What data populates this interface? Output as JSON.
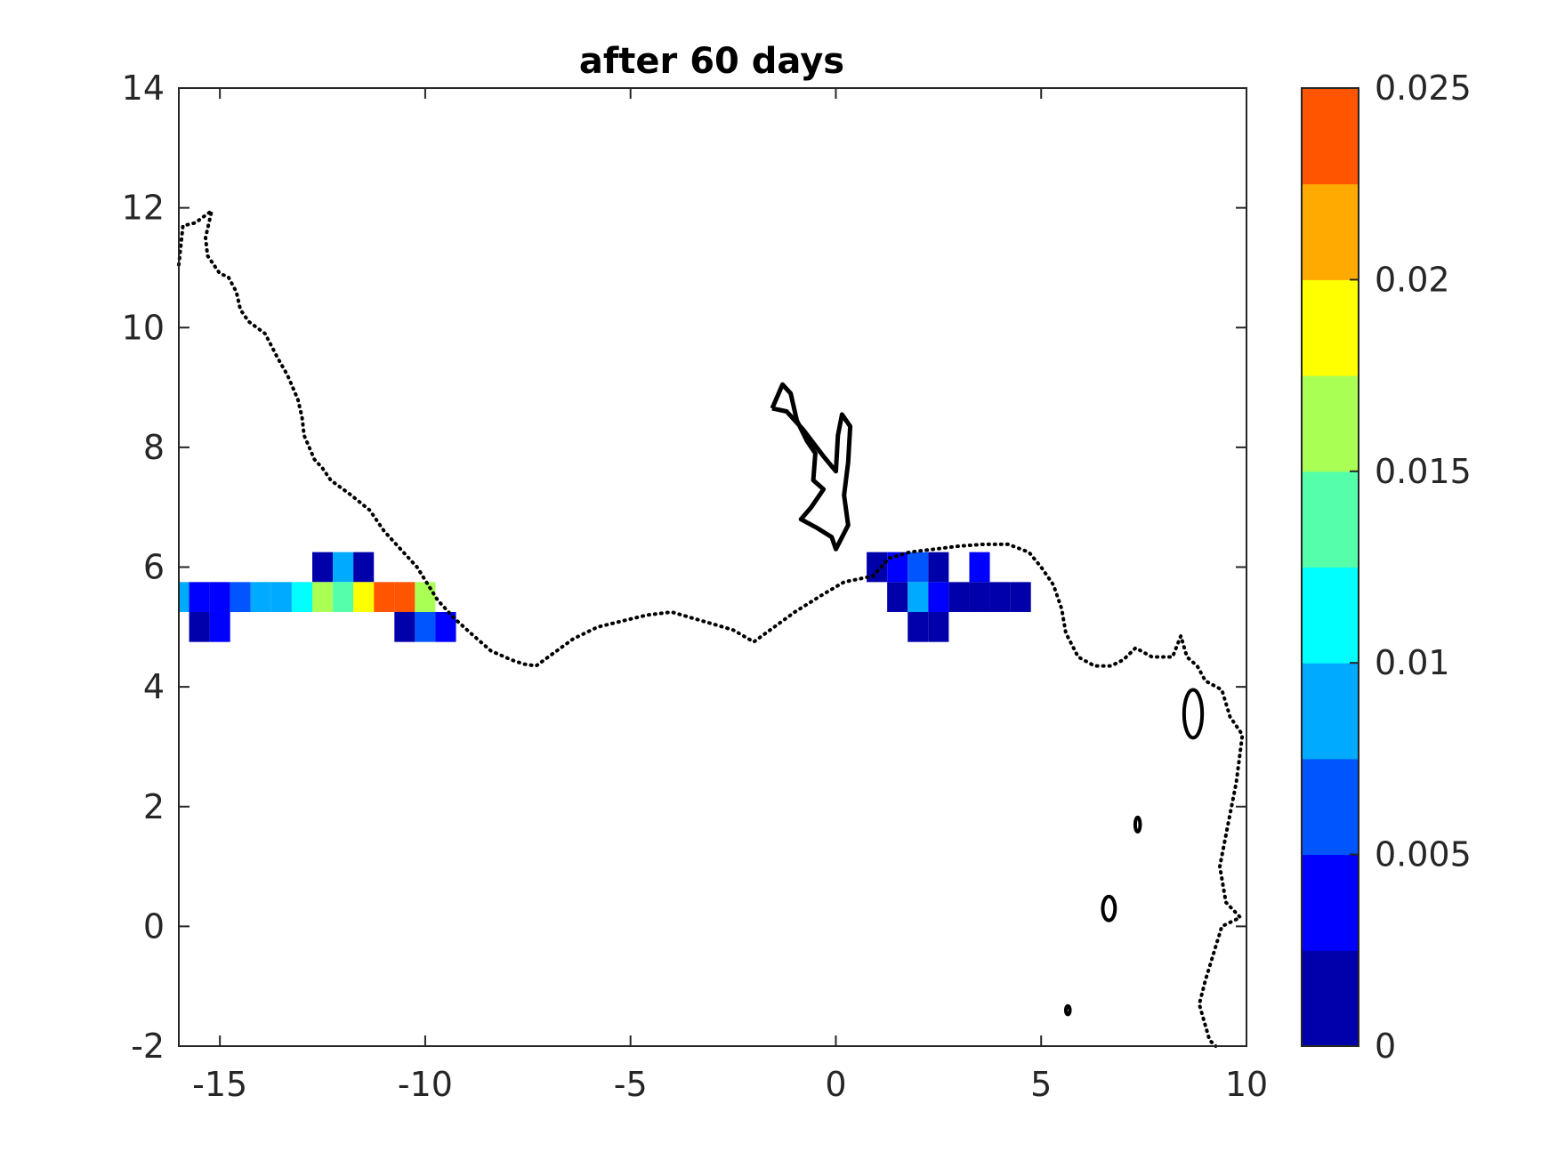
{
  "chart_data": {
    "type": "heatmap",
    "title": "after 60 days",
    "xlabel": "",
    "ylabel": "",
    "xlim": [
      -16,
      10
    ],
    "ylim": [
      -2,
      14
    ],
    "x_ticks": [
      -15,
      -10,
      -5,
      0,
      5,
      10
    ],
    "y_ticks": [
      -2,
      0,
      2,
      4,
      6,
      8,
      10,
      12,
      14
    ],
    "grid": false,
    "colorbar": {
      "clim": [
        0,
        0.025
      ],
      "ticks": [
        0,
        0.005,
        0.01,
        0.015,
        0.02,
        0.025
      ],
      "tick_labels": [
        "0",
        "0.005",
        "0.01",
        "0.015",
        "0.02",
        "0.025"
      ],
      "colors": [
        "#0000AA",
        "#0000FF",
        "#0055FF",
        "#00AAFF",
        "#00FFFF",
        "#55FFAA",
        "#AAFF55",
        "#FFFF00",
        "#FFAA00",
        "#FF5500"
      ]
    },
    "cells": [
      {
        "x": -12.5,
        "y": 6.0,
        "v": 0.0015
      },
      {
        "x": -12.0,
        "y": 6.0,
        "v": 0.0085
      },
      {
        "x": -11.5,
        "y": 6.0,
        "v": 0.0015
      },
      {
        "x": -16.0,
        "y": 5.5,
        "v": 0.0085
      },
      {
        "x": -15.5,
        "y": 5.5,
        "v": 0.0035
      },
      {
        "x": -15.0,
        "y": 5.5,
        "v": 0.0035
      },
      {
        "x": -14.5,
        "y": 5.5,
        "v": 0.006
      },
      {
        "x": -14.0,
        "y": 5.5,
        "v": 0.0085
      },
      {
        "x": -13.5,
        "y": 5.5,
        "v": 0.0085
      },
      {
        "x": -13.0,
        "y": 5.5,
        "v": 0.011
      },
      {
        "x": -12.5,
        "y": 5.5,
        "v": 0.016
      },
      {
        "x": -12.0,
        "y": 5.5,
        "v": 0.0135
      },
      {
        "x": -11.5,
        "y": 5.5,
        "v": 0.0185
      },
      {
        "x": -11.0,
        "y": 5.5,
        "v": 0.0235
      },
      {
        "x": -10.5,
        "y": 5.5,
        "v": 0.0235
      },
      {
        "x": -10.0,
        "y": 5.5,
        "v": 0.016
      },
      {
        "x": -15.5,
        "y": 5.0,
        "v": 0.0015
      },
      {
        "x": -15.0,
        "y": 5.0,
        "v": 0.0035
      },
      {
        "x": -10.5,
        "y": 5.0,
        "v": 0.0015
      },
      {
        "x": -10.0,
        "y": 5.0,
        "v": 0.006
      },
      {
        "x": -9.5,
        "y": 5.0,
        "v": 0.0035
      },
      {
        "x": 1.0,
        "y": 6.0,
        "v": 0.0015
      },
      {
        "x": 1.5,
        "y": 6.0,
        "v": 0.0035
      },
      {
        "x": 2.0,
        "y": 6.0,
        "v": 0.006
      },
      {
        "x": 2.5,
        "y": 6.0,
        "v": 0.0015
      },
      {
        "x": 3.5,
        "y": 6.0,
        "v": 0.0035
      },
      {
        "x": 1.5,
        "y": 5.5,
        "v": 0.0015
      },
      {
        "x": 2.0,
        "y": 5.5,
        "v": 0.0085
      },
      {
        "x": 2.5,
        "y": 5.5,
        "v": 0.0035
      },
      {
        "x": 3.0,
        "y": 5.5,
        "v": 0.0015
      },
      {
        "x": 3.5,
        "y": 5.5,
        "v": 0.0015
      },
      {
        "x": 4.0,
        "y": 5.5,
        "v": 0.0015
      },
      {
        "x": 4.5,
        "y": 5.5,
        "v": 0.0015
      },
      {
        "x": 2.0,
        "y": 5.0,
        "v": 0.0015
      },
      {
        "x": 2.5,
        "y": 5.0,
        "v": 0.0015
      }
    ],
    "cell_size": 0.5,
    "coastline": [
      [
        -16.0,
        11.05
      ],
      [
        -15.9,
        11.7
      ],
      [
        -15.6,
        11.75
      ],
      [
        -15.4,
        11.85
      ],
      [
        -15.2,
        11.95
      ],
      [
        -15.35,
        11.5
      ],
      [
        -15.3,
        11.2
      ],
      [
        -15.0,
        10.9
      ],
      [
        -14.8,
        10.85
      ],
      [
        -14.6,
        10.6
      ],
      [
        -14.5,
        10.3
      ],
      [
        -14.3,
        10.1
      ],
      [
        -13.9,
        9.9
      ],
      [
        -13.6,
        9.5
      ],
      [
        -13.35,
        9.2
      ],
      [
        -13.1,
        8.8
      ],
      [
        -13.0,
        8.5
      ],
      [
        -12.95,
        8.2
      ],
      [
        -12.7,
        7.8
      ],
      [
        -12.5,
        7.65
      ],
      [
        -12.3,
        7.45
      ],
      [
        -11.8,
        7.2
      ],
      [
        -11.35,
        6.95
      ],
      [
        -11.0,
        6.6
      ],
      [
        -10.6,
        6.3
      ],
      [
        -10.2,
        6.0
      ],
      [
        -9.7,
        5.45
      ],
      [
        -9.3,
        5.15
      ],
      [
        -8.9,
        4.9
      ],
      [
        -8.4,
        4.6
      ],
      [
        -7.9,
        4.45
      ],
      [
        -7.6,
        4.38
      ],
      [
        -7.3,
        4.35
      ],
      [
        -6.9,
        4.55
      ],
      [
        -6.4,
        4.8
      ],
      [
        -5.8,
        5.0
      ],
      [
        -5.2,
        5.1
      ],
      [
        -4.6,
        5.2
      ],
      [
        -4.0,
        5.25
      ],
      [
        -3.5,
        5.15
      ],
      [
        -3.0,
        5.05
      ],
      [
        -2.5,
        4.95
      ],
      [
        -2.0,
        4.75
      ],
      [
        -1.6,
        4.95
      ],
      [
        -1.0,
        5.25
      ],
      [
        -0.3,
        5.55
      ],
      [
        0.2,
        5.75
      ],
      [
        0.9,
        5.85
      ],
      [
        1.3,
        6.15
      ],
      [
        1.8,
        6.25
      ],
      [
        2.4,
        6.3
      ],
      [
        3.0,
        6.35
      ],
      [
        3.6,
        6.38
      ],
      [
        4.2,
        6.38
      ],
      [
        4.7,
        6.25
      ],
      [
        5.0,
        6.0
      ],
      [
        5.3,
        5.7
      ],
      [
        5.5,
        5.3
      ],
      [
        5.6,
        4.9
      ],
      [
        5.9,
        4.5
      ],
      [
        6.3,
        4.35
      ],
      [
        6.7,
        4.35
      ],
      [
        7.0,
        4.45
      ],
      [
        7.3,
        4.65
      ],
      [
        7.7,
        4.5
      ],
      [
        8.2,
        4.5
      ],
      [
        8.4,
        4.85
      ],
      [
        8.55,
        4.5
      ],
      [
        8.8,
        4.35
      ],
      [
        9.0,
        4.1
      ],
      [
        9.4,
        3.95
      ],
      [
        9.6,
        3.5
      ],
      [
        9.9,
        3.2
      ],
      [
        9.75,
        2.4
      ],
      [
        9.55,
        1.7
      ],
      [
        9.35,
        1.0
      ],
      [
        9.5,
        0.4
      ],
      [
        9.85,
        0.15
      ],
      [
        9.4,
        0.0
      ],
      [
        9.0,
        -0.9
      ],
      [
        8.85,
        -1.3
      ],
      [
        9.1,
        -1.9
      ],
      [
        9.25,
        -2.0
      ]
    ],
    "inland_water": [
      [
        -1.55,
        8.65
      ],
      [
        -1.3,
        9.05
      ],
      [
        -1.1,
        8.9
      ],
      [
        -0.95,
        8.45
      ],
      [
        -0.7,
        8.1
      ],
      [
        -0.5,
        7.9
      ],
      [
        -0.55,
        7.45
      ],
      [
        -0.3,
        7.3
      ],
      [
        -0.6,
        7.0
      ],
      [
        -0.85,
        6.8
      ],
      [
        -0.45,
        6.65
      ],
      [
        -0.1,
        6.5
      ],
      [
        0.0,
        6.3
      ],
      [
        0.3,
        6.7
      ],
      [
        0.2,
        7.2
      ],
      [
        0.3,
        7.75
      ],
      [
        0.35,
        8.35
      ],
      [
        0.15,
        8.55
      ],
      [
        0.05,
        8.2
      ],
      [
        0.0,
        7.6
      ],
      [
        -0.3,
        7.85
      ],
      [
        -0.8,
        8.3
      ],
      [
        -1.2,
        8.6
      ],
      [
        -1.55,
        8.65
      ]
    ],
    "islands": [
      {
        "x": 8.7,
        "y": 3.55,
        "rx": 0.22,
        "ry": 0.4
      },
      {
        "x": 6.65,
        "y": 0.3,
        "rx": 0.15,
        "ry": 0.2
      },
      {
        "x": 7.35,
        "y": 1.7,
        "rx": 0.06,
        "ry": 0.12
      },
      {
        "x": 5.65,
        "y": -1.4,
        "rx": 0.05,
        "ry": 0.07
      }
    ]
  }
}
